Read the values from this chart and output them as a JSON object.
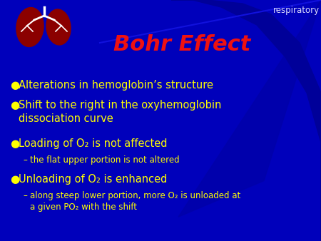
{
  "title": "Bohr Effect",
  "title_color": "#EE1111",
  "title_fontsize": 22,
  "bg_color": "#0000BB",
  "text_color": "#FFFF00",
  "sub_text_color": "#FFFF00",
  "watermark": "respiratory",
  "watermark_color": "#DDDDFF",
  "bullet_color": "#FFFF00",
  "bullets": [
    "Alterations in hemoglobin’s structure",
    "Shift to the right in the oxyhemoglobin\ndissociation curve",
    "Loading of O₂ is not affected",
    "Unloading of O₂ is enhanced"
  ],
  "sub2": "the flat upper portion is not altered",
  "sub3": "along steep lower portion, more O₂ is unloaded at\na given PO₂ with the shift",
  "figsize": [
    4.5,
    3.38
  ],
  "dpi": 100
}
